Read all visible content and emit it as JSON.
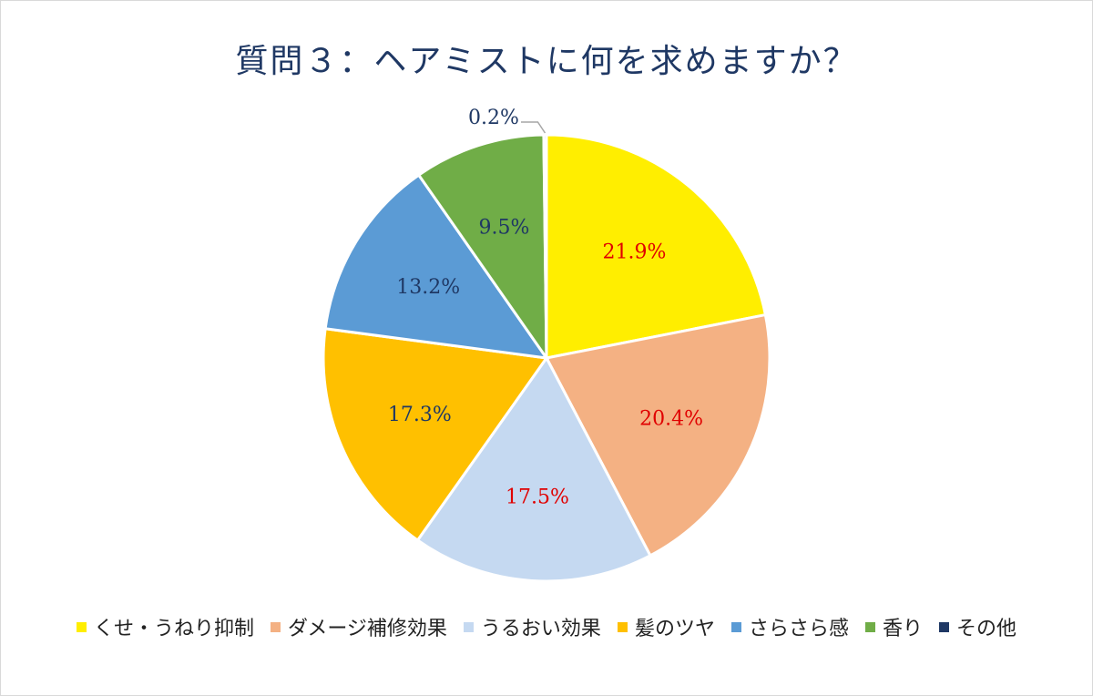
{
  "chart_data": {
    "type": "pie",
    "title": "質問３：ヘアミストに何を求めますか？",
    "slices": [
      {
        "label": "くせ・うねり抑制",
        "value": 21.9,
        "value_label": "21.9%",
        "color": "#ffee00",
        "label_color": "#e00000"
      },
      {
        "label": "ダメージ補修効果",
        "value": 20.4,
        "value_label": "20.4%",
        "color": "#f4b183",
        "label_color": "#e00000"
      },
      {
        "label": "うるおい効果",
        "value": 17.5,
        "value_label": "17.5%",
        "color": "#c5d9f1",
        "label_color": "#e00000"
      },
      {
        "label": "髪のツヤ",
        "value": 17.3,
        "value_label": "17.3%",
        "color": "#ffc000",
        "label_color": "#1f3864"
      },
      {
        "label": "さらさら感",
        "value": 13.2,
        "value_label": "13.2%",
        "color": "#5b9bd5",
        "label_color": "#1f3864"
      },
      {
        "label": "香り",
        "value": 9.5,
        "value_label": "9.5%",
        "color": "#70ad47",
        "label_color": "#1f3864"
      },
      {
        "label": "その他",
        "value": 0.2,
        "value_label": "0.2%",
        "color": "#1f3864",
        "label_color": "#1f3864"
      }
    ],
    "legend_position": "bottom"
  }
}
